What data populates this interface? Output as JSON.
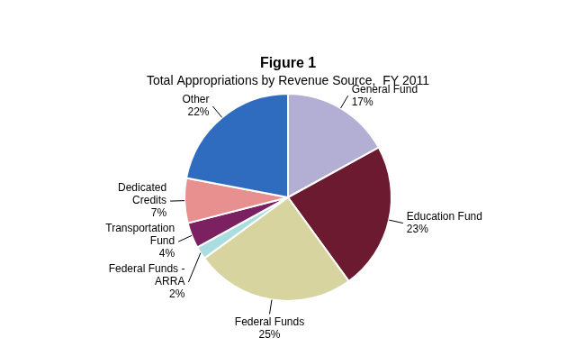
{
  "chart_data": {
    "type": "pie",
    "title": "Figure 1",
    "subtitle": "Total Appropriations by Revenue Source,  FY 2011",
    "categories": [
      "General Fund",
      "Education Fund",
      "Federal Funds",
      "Federal Funds -\nARRA",
      "Transportation\nFund",
      "Dedicated\nCredits",
      "Other"
    ],
    "values": [
      17,
      23,
      25,
      2,
      4,
      7,
      22
    ],
    "value_labels": [
      "17%",
      "23%",
      "25%",
      "2%",
      "4%",
      "7%",
      "22%"
    ],
    "colors": [
      "#b3aed4",
      "#6b1a30",
      "#d8d4a0",
      "#aadde0",
      "#7b2060",
      "#e89090",
      "#2f6bbf"
    ],
    "data_labels": true
  }
}
